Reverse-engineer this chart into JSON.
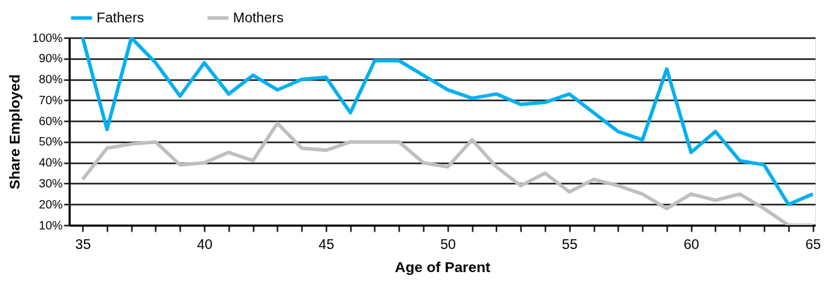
{
  "chart_data": {
    "type": "line",
    "xlabel": "Age of Parent",
    "ylabel": "Share Employed",
    "x": [
      35,
      36,
      37,
      38,
      39,
      40,
      41,
      42,
      43,
      44,
      45,
      46,
      47,
      48,
      49,
      50,
      51,
      52,
      53,
      54,
      55,
      56,
      57,
      58,
      59,
      60,
      61,
      62,
      63,
      64,
      65
    ],
    "series": [
      {
        "name": "Fathers",
        "color": "#00b0f0",
        "values": [
          100,
          56,
          100,
          88,
          72,
          88,
          73,
          82,
          75,
          80,
          81,
          64,
          89,
          89,
          82,
          75,
          71,
          73,
          68,
          69,
          73,
          64,
          55,
          51,
          85,
          45,
          55,
          41,
          39,
          20,
          25
        ]
      },
      {
        "name": "Mothers",
        "color": "#bfbfbf",
        "values": [
          32,
          47,
          49,
          50,
          39,
          40,
          45,
          41,
          59,
          47,
          46,
          50,
          50,
          50,
          40,
          38,
          51,
          38,
          29,
          35,
          26,
          32,
          29,
          25,
          18,
          25,
          22,
          25,
          18,
          10,
          10
        ]
      }
    ],
    "xlim": [
      34.45,
      65.1
    ],
    "xticks": [
      35,
      {
        "value": 36,
        "label": null
      },
      {
        "value": 37,
        "label": null
      },
      {
        "value": 38,
        "label": null
      },
      {
        "value": 39,
        "label": null
      },
      40,
      {
        "value": 41,
        "label": null
      },
      {
        "value": 42,
        "label": null
      },
      {
        "value": 43,
        "label": null
      },
      {
        "value": 44,
        "label": null
      },
      45,
      {
        "value": 46,
        "label": null
      },
      {
        "value": 47,
        "label": null
      },
      {
        "value": 48,
        "label": null
      },
      {
        "value": 49,
        "label": null
      },
      50,
      {
        "value": 51,
        "label": null
      },
      {
        "value": 52,
        "label": null
      },
      {
        "value": 53,
        "label": null
      },
      {
        "value": 54,
        "label": null
      },
      55,
      {
        "value": 56,
        "label": null
      },
      {
        "value": 57,
        "label": null
      },
      {
        "value": 58,
        "label": null
      },
      {
        "value": 59,
        "label": null
      },
      60,
      {
        "value": 61,
        "label": null
      },
      {
        "value": 62,
        "label": null
      },
      {
        "value": 63,
        "label": null
      },
      {
        "value": 64,
        "label": null
      },
      65
    ],
    "ylim": [
      10,
      100
    ],
    "yticks": [
      {
        "value": 10,
        "label": "10%"
      },
      {
        "value": 20,
        "label": "20%"
      },
      {
        "value": 30,
        "label": "30%"
      },
      {
        "value": 40,
        "label": "40%"
      },
      {
        "value": 50,
        "label": "50%"
      },
      {
        "value": 60,
        "label": "60%"
      },
      {
        "value": 70,
        "label": "70%"
      },
      {
        "value": 80,
        "label": "80%"
      },
      {
        "value": 90,
        "label": "90%"
      },
      {
        "value": 100,
        "label": "100%"
      }
    ],
    "grid": "y",
    "legend": "top",
    "marker": "none",
    "line_style": "solid"
  }
}
